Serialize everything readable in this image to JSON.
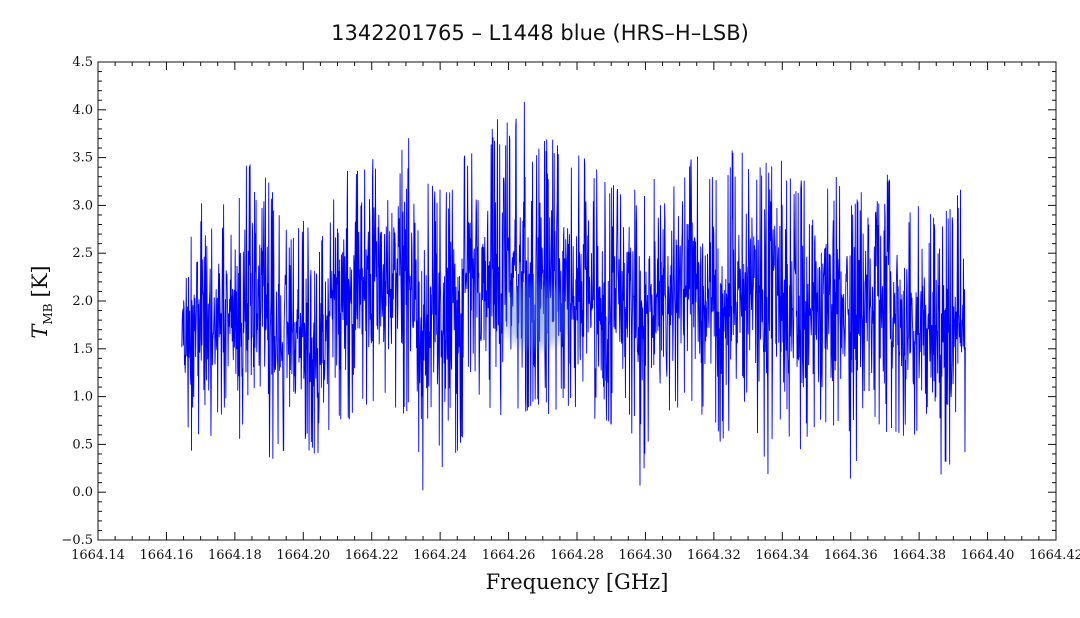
{
  "chart_data": {
    "type": "line",
    "title": "1342201765 – L1448 blue (HRS–H–LSB)",
    "xlabel": "Frequency [GHz]",
    "ylabel": {
      "symbol": "T",
      "subscript": "MB",
      "unit": "[K]"
    },
    "xlim": [
      1664.14,
      1664.42
    ],
    "ylim": [
      -0.5,
      4.5
    ],
    "x_ticks": [
      "1664.14",
      "1664.16",
      "1664.18",
      "1664.20",
      "1664.22",
      "1664.24",
      "1664.26",
      "1664.28",
      "1664.30",
      "1664.32",
      "1664.34",
      "1664.36",
      "1664.38",
      "1664.40",
      "1664.42"
    ],
    "y_ticks": [
      "−0.5",
      "0.0",
      "0.5",
      "1.0",
      "1.5",
      "2.0",
      "2.5",
      "3.0",
      "3.5",
      "4.0",
      "4.5"
    ],
    "grid": false,
    "legend": "none",
    "series": [
      {
        "color": "#0000ff",
        "x_start": 1664.1645,
        "x_end": 1664.3935,
        "x": [
          1664.1645,
          1664.1676,
          1664.17,
          1664.172,
          1664.176,
          1664.179,
          1664.184,
          1664.188,
          1664.192,
          1664.196,
          1664.2,
          1664.204,
          1664.208,
          1664.212,
          1664.216,
          1664.22,
          1664.224,
          1664.228,
          1664.232,
          1664.2353,
          1664.238,
          1664.242,
          1664.246,
          1664.25,
          1664.254,
          1664.258,
          1664.262,
          1664.265,
          1664.266,
          1664.269,
          1664.272,
          1664.276,
          1664.28,
          1664.284,
          1664.288,
          1664.292,
          1664.296,
          1664.2985,
          1664.302,
          1664.306,
          1664.31,
          1664.314,
          1664.318,
          1664.322,
          1664.326,
          1664.33,
          1664.3353,
          1664.338,
          1664.342,
          1664.346,
          1664.35,
          1664.354,
          1664.358,
          1664.3603,
          1664.364,
          1664.368,
          1664.372,
          1664.376,
          1664.38,
          1664.384,
          1664.3862,
          1664.39,
          1664.3935
        ],
        "envelope_low": [
          1.0,
          0.3,
          0.5,
          0.5,
          0.8,
          0.6,
          0.5,
          0.6,
          0.0,
          0.6,
          0.5,
          0.3,
          0.7,
          0.7,
          0.8,
          0.9,
          0.9,
          0.8,
          0.8,
          -0.15,
          0.6,
          0.0,
          0.4,
          0.6,
          0.7,
          0.6,
          0.8,
          0.8,
          0.8,
          0.8,
          0.8,
          0.9,
          0.7,
          0.6,
          0.5,
          0.8,
          0.6,
          -0.05,
          0.8,
          0.7,
          0.9,
          0.8,
          0.8,
          0.4,
          0.6,
          0.9,
          -0.1,
          0.8,
          0.4,
          0.4,
          0.5,
          0.6,
          0.6,
          -0.1,
          0.6,
          0.6,
          0.5,
          0.6,
          0.5,
          0.5,
          -0.05,
          0.4,
          0.4
        ],
        "envelope_high": [
          2.45,
          2.9,
          3.3,
          2.6,
          3.2,
          2.7,
          3.55,
          3.65,
          3.05,
          2.7,
          2.9,
          2.7,
          3.0,
          3.45,
          3.5,
          3.5,
          3.7,
          3.9,
          3.85,
          3.3,
          3.2,
          3.15,
          3.4,
          3.85,
          3.8,
          3.95,
          3.9,
          4.17,
          3.6,
          3.7,
          3.8,
          3.6,
          3.55,
          3.5,
          3.3,
          3.2,
          3.3,
          3.1,
          3.4,
          3.3,
          3.3,
          3.7,
          3.4,
          3.2,
          3.65,
          3.5,
          3.5,
          3.6,
          3.3,
          3.3,
          3.5,
          3.3,
          3.3,
          3.0,
          3.2,
          3.7,
          3.3,
          3.0,
          3.0,
          2.9,
          2.9,
          3.0,
          3.35
        ]
      }
    ],
    "highlight": {
      "x": 1664.268,
      "y": 1.85,
      "color": "#4a7acc"
    }
  }
}
